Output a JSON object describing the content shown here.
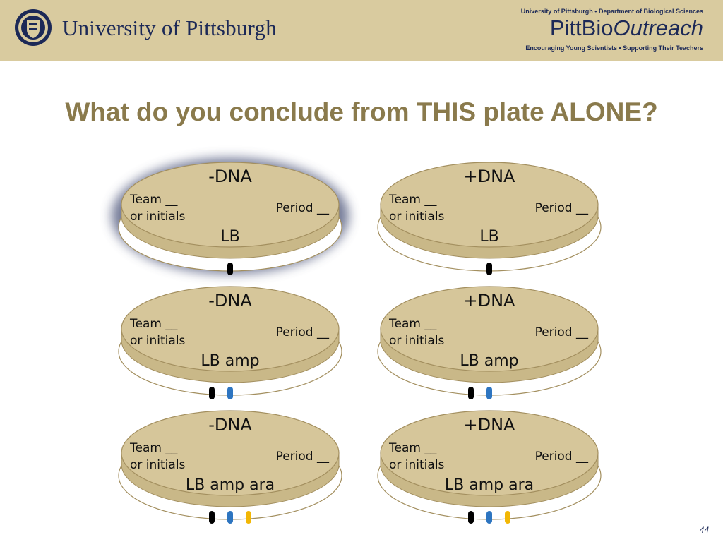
{
  "header": {
    "university_name": "University of Pittsburgh",
    "department_line": "University of Pittsburgh • Department of Biological Sciences",
    "outreach_logo_pitt": "PittBio",
    "outreach_logo_outreach": "Outreach",
    "tagline": "Encouraging Young Scientists • Supporting Their Teachers",
    "seal_icon": "university-seal-icon"
  },
  "slide": {
    "title": "What do you conclude from THIS plate ALONE?",
    "page_number": "44"
  },
  "colors": {
    "header_bg": "#d9cb9f",
    "title": "#8a7a4c",
    "plate_fill": "#d6c69a",
    "highlight": "#5b6385",
    "dot_black": "#000000",
    "dot_blue": "#2e75c0",
    "dot_yellow": "#f2b705"
  },
  "plates": [
    {
      "dna": "-DNA",
      "team": "Team __",
      "initials": "or initials",
      "period": "Period __",
      "medium": "LB",
      "dots": [
        "black"
      ],
      "highlighted": true
    },
    {
      "dna": "+DNA",
      "team": "Team __",
      "initials": "or initials",
      "period": "Period __",
      "medium": "LB",
      "dots": [
        "black"
      ],
      "highlighted": false
    },
    {
      "dna": "-DNA",
      "team": "Team __",
      "initials": "or initials",
      "period": "Period __",
      "medium": "LB amp",
      "dots": [
        "black",
        "blue"
      ],
      "highlighted": false
    },
    {
      "dna": "+DNA",
      "team": "Team __",
      "initials": "or initials",
      "period": "Period __",
      "medium": "LB amp",
      "dots": [
        "black",
        "blue"
      ],
      "highlighted": false
    },
    {
      "dna": "-DNA",
      "team": "Team __",
      "initials": "or initials",
      "period": "Period __",
      "medium": "LB amp ara",
      "dots": [
        "black",
        "blue",
        "yellow"
      ],
      "highlighted": false
    },
    {
      "dna": "+DNA",
      "team": "Team __",
      "initials": "or initials",
      "period": "Period __",
      "medium": "LB amp ara",
      "dots": [
        "black",
        "blue",
        "yellow"
      ],
      "highlighted": false
    }
  ]
}
